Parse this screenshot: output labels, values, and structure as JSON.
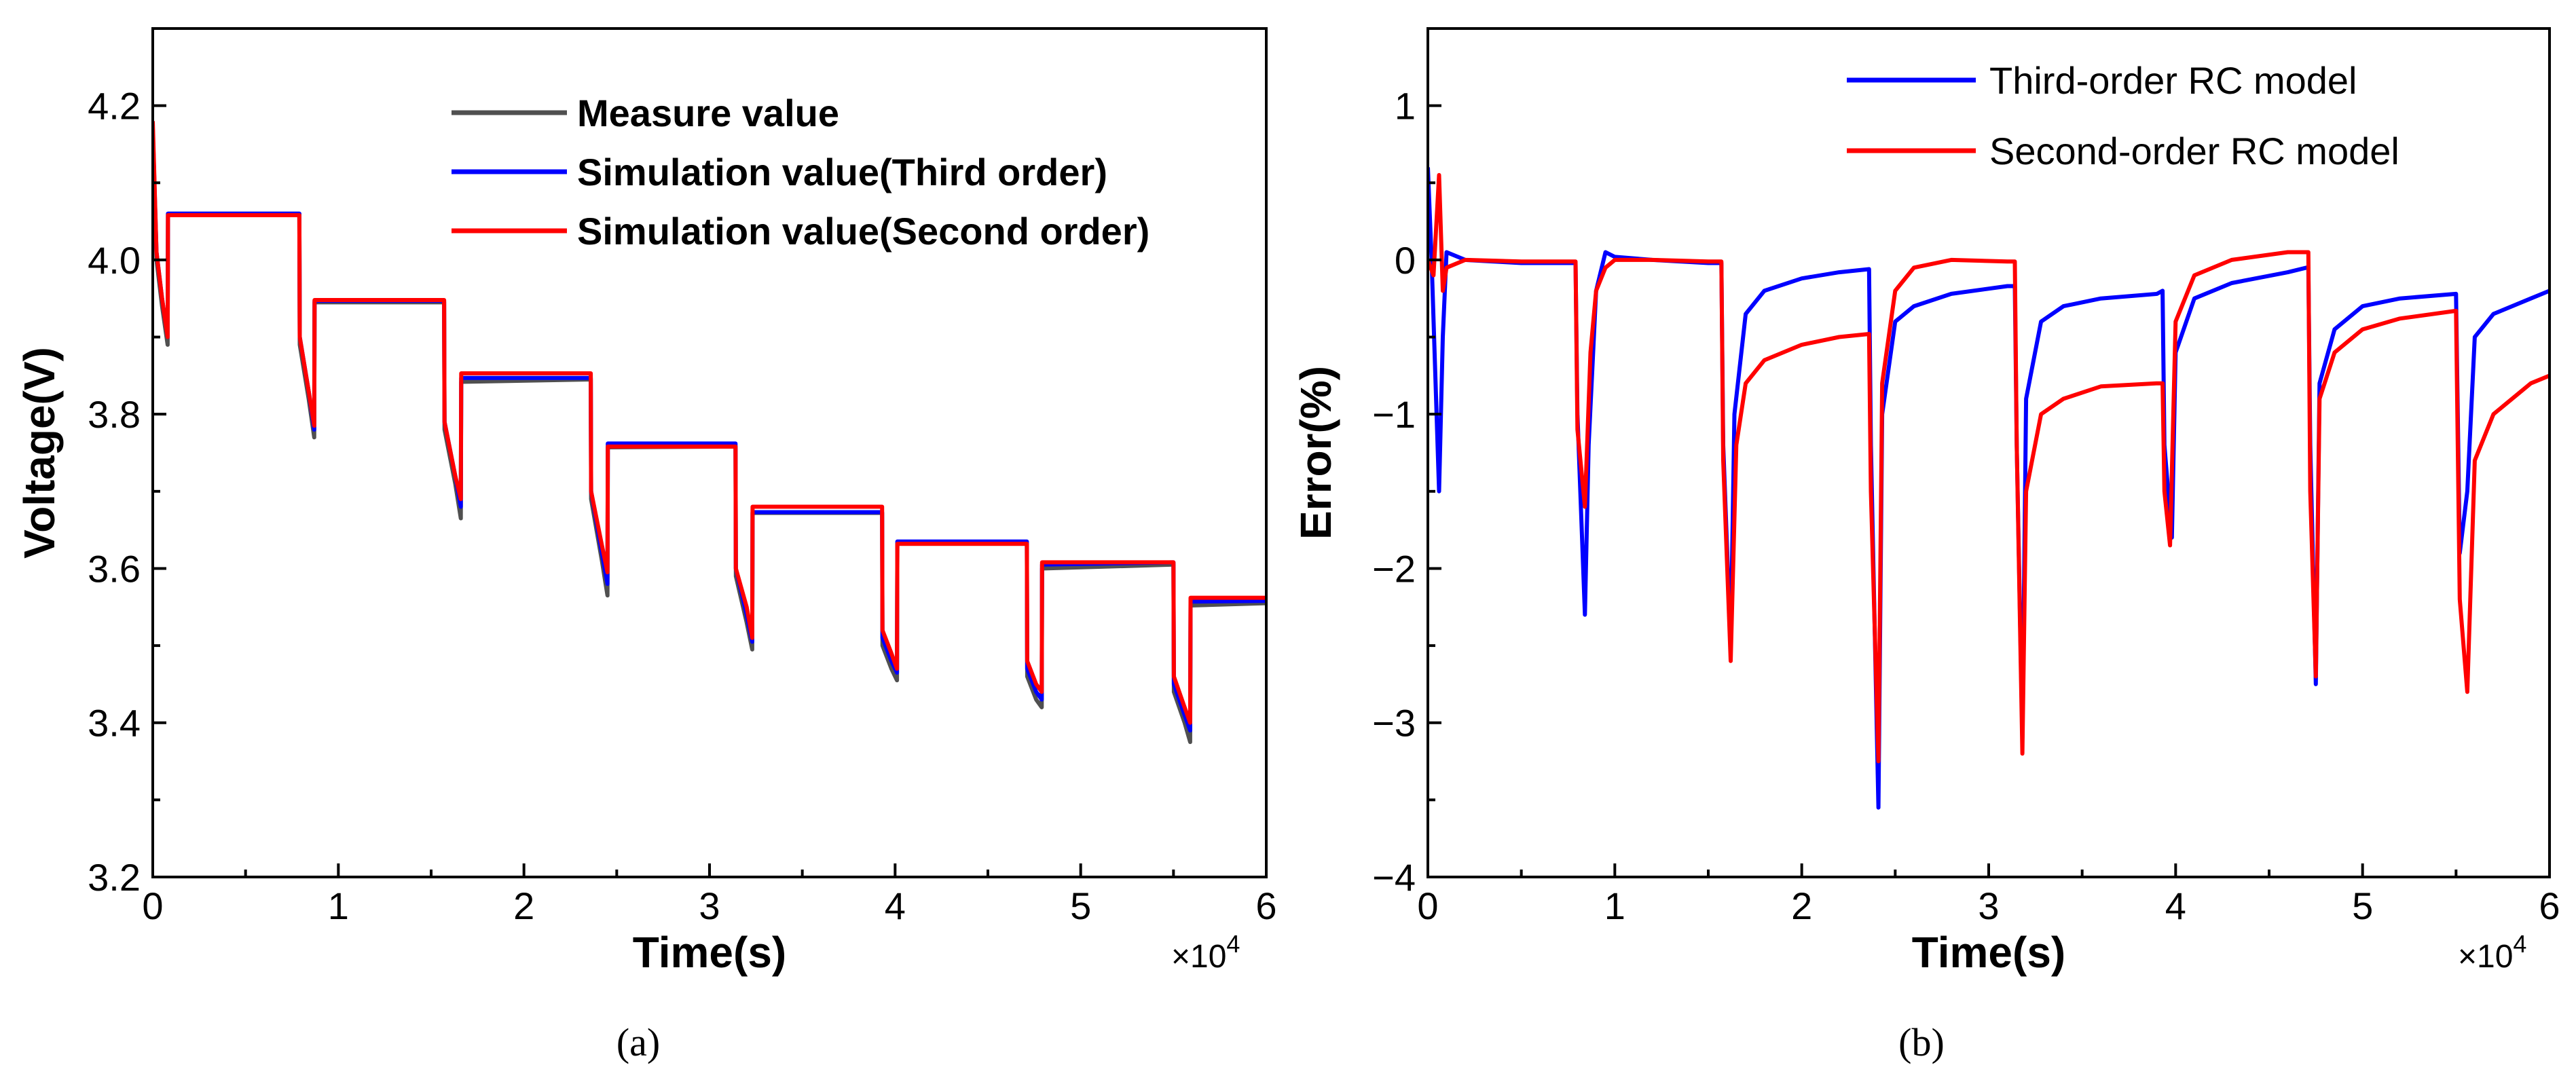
{
  "chart_data": [
    {
      "type": "line",
      "panel_label": "(a)",
      "xlabel": "Time(s)",
      "ylabel": "Voltage(V)",
      "x_multiplier": "×10",
      "x_multiplier_exp": "4",
      "xlim": [
        0,
        6
      ],
      "ylim": [
        3.2,
        4.3
      ],
      "xticks": [
        0,
        1,
        2,
        3,
        4,
        5,
        6
      ],
      "xtick_labels": [
        "0",
        "1",
        "2",
        "3",
        "4",
        "5",
        "6"
      ],
      "yticks": [
        3.2,
        3.4,
        3.6,
        3.8,
        4.0,
        4.2
      ],
      "ytick_labels": [
        "3.2",
        "3.4",
        "3.6",
        "3.8",
        "4.0",
        "4.2"
      ],
      "legend_position": "top-right",
      "series": [
        {
          "name": "Measure value",
          "color": "#505050",
          "x": [
            0,
            0.02,
            0.05,
            0.08,
            0.082,
            0.79,
            0.792,
            0.84,
            0.87,
            0.872,
            1.57,
            1.572,
            1.63,
            1.66,
            1.662,
            2.36,
            2.362,
            2.42,
            2.45,
            2.452,
            3.14,
            3.142,
            3.2,
            3.23,
            3.232,
            3.93,
            3.932,
            3.98,
            4.01,
            4.012,
            4.71,
            4.712,
            4.76,
            4.79,
            4.792,
            5.5,
            5.502,
            5.56,
            5.59,
            5.592,
            6.0
          ],
          "y": [
            4.17,
            4.0,
            3.94,
            3.89,
            4.06,
            4.06,
            3.89,
            3.82,
            3.77,
            3.945,
            3.945,
            3.78,
            3.71,
            3.665,
            3.842,
            3.845,
            3.69,
            3.61,
            3.565,
            3.757,
            3.758,
            3.59,
            3.53,
            3.495,
            3.672,
            3.672,
            3.5,
            3.47,
            3.455,
            3.632,
            3.632,
            3.46,
            3.43,
            3.42,
            3.6,
            3.605,
            3.44,
            3.4,
            3.375,
            3.552,
            3.555
          ]
        },
        {
          "name": "Simulation value(Third order)",
          "color": "#0000ff",
          "x": [
            0,
            0.02,
            0.05,
            0.08,
            0.082,
            0.79,
            0.792,
            0.84,
            0.87,
            0.872,
            1.57,
            1.572,
            1.63,
            1.66,
            1.662,
            2.36,
            2.362,
            2.42,
            2.45,
            2.452,
            3.14,
            3.142,
            3.2,
            3.23,
            3.232,
            3.93,
            3.932,
            3.98,
            4.01,
            4.012,
            4.71,
            4.712,
            4.76,
            4.79,
            4.792,
            5.5,
            5.502,
            5.56,
            5.59,
            5.592,
            6.0
          ],
          "y": [
            4.17,
            4.01,
            3.95,
            3.9,
            4.06,
            4.06,
            3.9,
            3.83,
            3.78,
            3.947,
            3.947,
            3.79,
            3.72,
            3.68,
            3.847,
            3.847,
            3.7,
            3.62,
            3.58,
            3.762,
            3.762,
            3.6,
            3.54,
            3.505,
            3.673,
            3.673,
            3.51,
            3.48,
            3.465,
            3.635,
            3.635,
            3.47,
            3.44,
            3.43,
            3.605,
            3.608,
            3.45,
            3.41,
            3.39,
            3.557,
            3.558
          ]
        },
        {
          "name": "Simulation value(Second order)",
          "color": "#ff0000",
          "x": [
            0,
            0.02,
            0.05,
            0.08,
            0.082,
            0.79,
            0.792,
            0.84,
            0.87,
            0.872,
            1.57,
            1.572,
            1.63,
            1.66,
            1.662,
            2.36,
            2.362,
            2.42,
            2.45,
            2.452,
            3.14,
            3.142,
            3.2,
            3.23,
            3.232,
            3.93,
            3.932,
            3.98,
            4.01,
            4.012,
            4.71,
            4.712,
            4.76,
            4.79,
            4.792,
            5.5,
            5.502,
            5.56,
            5.59,
            5.592,
            6.0
          ],
          "y": [
            4.18,
            4.01,
            3.95,
            3.9,
            4.058,
            4.058,
            3.9,
            3.83,
            3.785,
            3.948,
            3.948,
            3.79,
            3.72,
            3.69,
            3.853,
            3.853,
            3.7,
            3.63,
            3.595,
            3.758,
            3.758,
            3.6,
            3.55,
            3.51,
            3.68,
            3.68,
            3.52,
            3.49,
            3.47,
            3.632,
            3.632,
            3.48,
            3.45,
            3.44,
            3.608,
            3.608,
            3.46,
            3.42,
            3.4,
            3.562,
            3.562
          ]
        }
      ]
    },
    {
      "type": "line",
      "panel_label": "(b)",
      "xlabel": "Time(s)",
      "ylabel": "Error(%)",
      "x_multiplier": "×10",
      "x_multiplier_exp": "4",
      "xlim": [
        0,
        6
      ],
      "ylim": [
        -4,
        1.5
      ],
      "xticks": [
        0,
        1,
        2,
        3,
        4,
        5,
        6
      ],
      "xtick_labels": [
        "0",
        "1",
        "2",
        "3",
        "4",
        "5",
        "6"
      ],
      "yticks": [
        -4,
        -3,
        -2,
        -1,
        0,
        1
      ],
      "ytick_labels": [
        "−4",
        "−3",
        "−2",
        "−1",
        "0",
        "1"
      ],
      "legend_position": "top-right",
      "series": [
        {
          "name": "Third-order RC model",
          "color": "#0000ff",
          "x": [
            0,
            0.02,
            0.06,
            0.08,
            0.1,
            0.2,
            0.5,
            0.79,
            0.8,
            0.84,
            0.86,
            0.9,
            0.95,
            1.0,
            1.2,
            1.5,
            1.57,
            1.58,
            1.62,
            1.64,
            1.7,
            1.8,
            2.0,
            2.2,
            2.36,
            2.37,
            2.41,
            2.43,
            2.5,
            2.6,
            2.8,
            3.1,
            3.14,
            3.15,
            3.18,
            3.2,
            3.28,
            3.4,
            3.6,
            3.9,
            3.93,
            3.94,
            3.98,
            4.0,
            4.1,
            4.3,
            4.6,
            4.7,
            4.71,
            4.72,
            4.75,
            4.77,
            4.85,
            5.0,
            5.2,
            5.5,
            5.5,
            5.52,
            5.56,
            5.6,
            5.7,
            5.9,
            6.0
          ],
          "y": [
            0.6,
            0.0,
            -1.5,
            -0.5,
            0.05,
            0.0,
            -0.02,
            -0.02,
            -1.0,
            -2.3,
            -1.2,
            -0.2,
            0.05,
            0.02,
            0.0,
            -0.02,
            -0.02,
            -1.2,
            -2.5,
            -1.0,
            -0.35,
            -0.2,
            -0.12,
            -0.08,
            -0.06,
            -1.2,
            -3.55,
            -1.0,
            -0.4,
            -0.3,
            -0.22,
            -0.17,
            -0.17,
            -1.2,
            -3.1,
            -0.9,
            -0.4,
            -0.3,
            -0.25,
            -0.22,
            -0.2,
            -1.2,
            -1.8,
            -0.6,
            -0.25,
            -0.15,
            -0.08,
            -0.05,
            -0.05,
            -1.2,
            -2.75,
            -0.8,
            -0.45,
            -0.3,
            -0.25,
            -0.22,
            -0.22,
            -1.9,
            -1.5,
            -0.5,
            -0.35,
            -0.25,
            -0.2
          ]
        },
        {
          "name": "Second-order RC model",
          "color": "#ff0000",
          "x": [
            0,
            0.03,
            0.06,
            0.08,
            0.1,
            0.2,
            0.5,
            0.79,
            0.8,
            0.84,
            0.87,
            0.9,
            0.95,
            1.0,
            1.2,
            1.5,
            1.57,
            1.58,
            1.62,
            1.65,
            1.7,
            1.8,
            2.0,
            2.2,
            2.36,
            2.37,
            2.41,
            2.43,
            2.5,
            2.6,
            2.8,
            3.1,
            3.14,
            3.15,
            3.18,
            3.2,
            3.28,
            3.4,
            3.6,
            3.9,
            3.93,
            3.94,
            3.97,
            4.0,
            4.1,
            4.3,
            4.6,
            4.7,
            4.71,
            4.72,
            4.75,
            4.77,
            4.85,
            5.0,
            5.2,
            5.5,
            5.5,
            5.52,
            5.56,
            5.6,
            5.7,
            5.9,
            6.0
          ],
          "y": [
            0.0,
            -0.1,
            0.55,
            -0.2,
            -0.05,
            0.0,
            -0.01,
            -0.01,
            -1.1,
            -1.6,
            -0.6,
            -0.2,
            -0.05,
            0.0,
            0.0,
            -0.01,
            -0.01,
            -1.3,
            -2.6,
            -1.2,
            -0.8,
            -0.65,
            -0.55,
            -0.5,
            -0.48,
            -1.5,
            -3.25,
            -0.8,
            -0.2,
            -0.05,
            0.0,
            -0.01,
            -0.01,
            -1.2,
            -3.2,
            -1.5,
            -1.0,
            -0.9,
            -0.82,
            -0.8,
            -0.8,
            -1.5,
            -1.85,
            -0.4,
            -0.1,
            0.0,
            0.05,
            0.05,
            0.05,
            -1.5,
            -2.7,
            -0.9,
            -0.6,
            -0.45,
            -0.38,
            -0.33,
            -0.33,
            -2.2,
            -2.8,
            -1.3,
            -1.0,
            -0.8,
            -0.75
          ]
        }
      ]
    }
  ]
}
